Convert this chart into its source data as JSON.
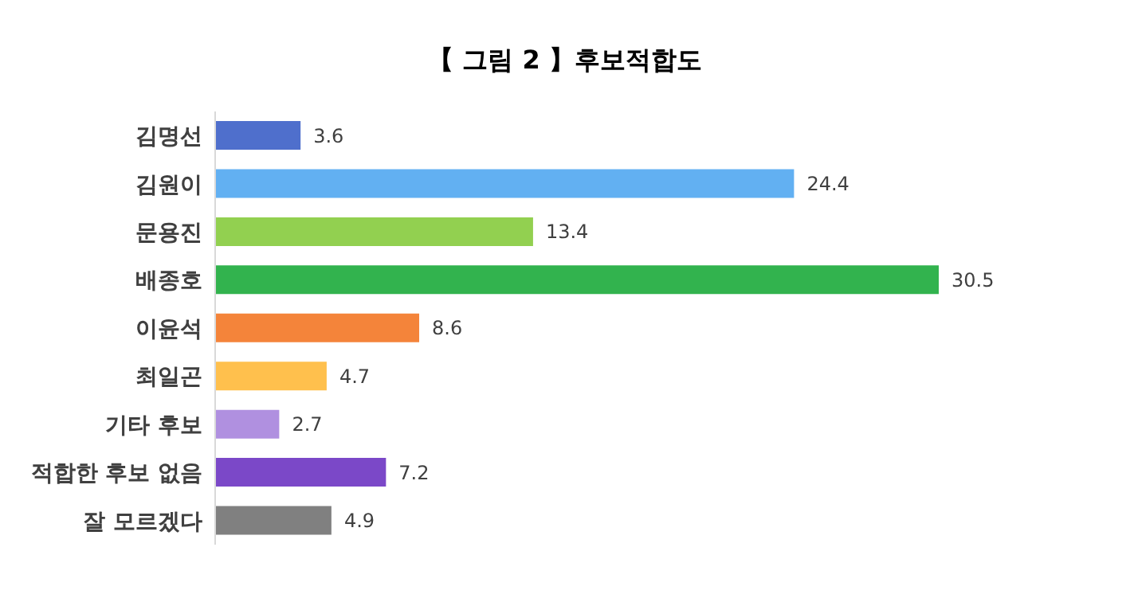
{
  "chart_data": {
    "type": "bar",
    "orientation": "horizontal",
    "title": "【 그림 2 】후보적합도",
    "categories": [
      "김명선",
      "김원이",
      "문용진",
      "배종호",
      "이윤석",
      "최일곤",
      "기타 후보",
      "적합한 후보 없음",
      "잘 모르겠다"
    ],
    "values": [
      3.6,
      24.4,
      13.4,
      30.5,
      8.6,
      4.7,
      2.7,
      7.2,
      4.9
    ],
    "colors": [
      "#4f6fcc",
      "#62b0f2",
      "#92d050",
      "#32b34e",
      "#f4843a",
      "#ffc04d",
      "#b090e0",
      "#7b48c8",
      "#808080"
    ],
    "tick_labels": "y",
    "data_labels": true
  }
}
